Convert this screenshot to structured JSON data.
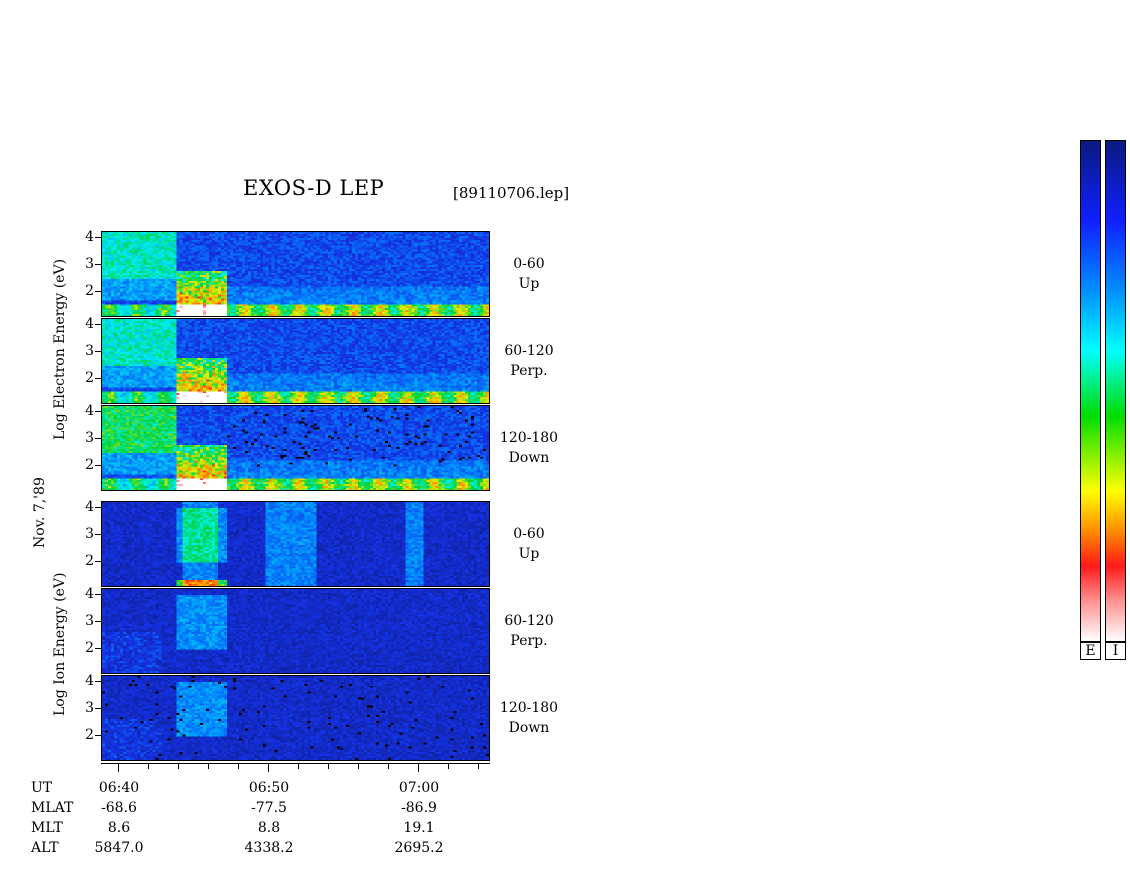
{
  "header": {
    "title": "EXOS-D LEP",
    "file": "[89110706.lep]"
  },
  "labels": {
    "electron_axis": "Log Electron Energy (eV)",
    "ion_axis": "Log Ion Energy (eV)",
    "date": "Nov. 7,'89"
  },
  "chart_data": {
    "type": "heatmap",
    "title": "EXOS-D LEP",
    "x_axis": {
      "type": "time",
      "ticks": [
        "06:40",
        "06:50",
        "07:00"
      ]
    },
    "y_axis": {
      "label_electron": "Log Electron Energy (eV)",
      "label_ion": "Log Ion Energy (eV)",
      "ticks": [
        "4",
        "3",
        "2"
      ]
    },
    "panels": [
      {
        "species": "electron",
        "pitch_range": "0-60",
        "direction": "Up"
      },
      {
        "species": "electron",
        "pitch_range": "60-120",
        "direction": "Perp."
      },
      {
        "species": "electron",
        "pitch_range": "120-180",
        "direction": "Down"
      },
      {
        "species": "ion",
        "pitch_range": "0-60",
        "direction": "Up"
      },
      {
        "species": "ion",
        "pitch_range": "60-120",
        "direction": "Perp."
      },
      {
        "species": "ion",
        "pitch_range": "120-180",
        "direction": "Down"
      }
    ],
    "orbit": {
      "rows": [
        "UT",
        "MLAT",
        "MLT",
        "ALT"
      ],
      "columns": [
        {
          "UT": "06:40",
          "MLAT": "-68.6",
          "MLT": "8.6",
          "ALT": "5847.0"
        },
        {
          "UT": "06:50",
          "MLAT": "-77.5",
          "MLT": "8.8",
          "ALT": "4338.2"
        },
        {
          "UT": "07:00",
          "MLAT": "-86.9",
          "MLT": "19.1",
          "ALT": "2695.2"
        }
      ]
    },
    "colorbars": [
      "E",
      "I"
    ],
    "colorscale": [
      "#ffffff",
      "#ff1a1a",
      "#ff8c00",
      "#ffff00",
      "#00dd00",
      "#00ffff",
      "#0090ff",
      "#1020ff",
      "#0a1a80"
    ]
  }
}
